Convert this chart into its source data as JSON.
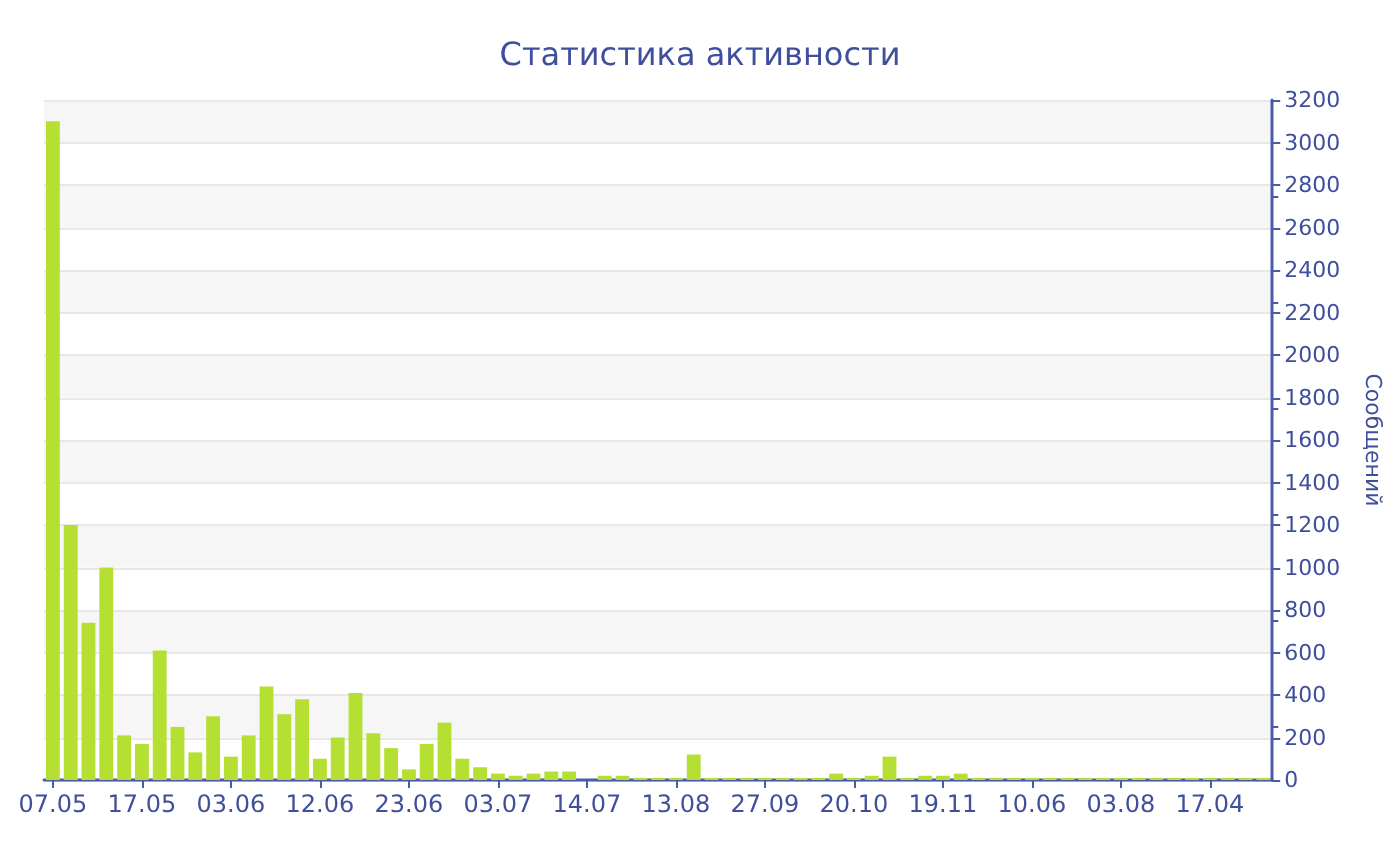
{
  "chart_data": {
    "type": "bar",
    "title": "Статистика активности",
    "ylabel": "Сообщений",
    "categories": [
      "07.05",
      null,
      null,
      null,
      null,
      "17.05",
      null,
      null,
      null,
      null,
      "03.06",
      null,
      null,
      null,
      null,
      "12.06",
      null,
      null,
      null,
      null,
      "23.06",
      null,
      null,
      null,
      null,
      "03.07",
      null,
      null,
      null,
      null,
      "14.07",
      null,
      null,
      null,
      null,
      "13.08",
      null,
      null,
      null,
      null,
      "27.09",
      null,
      null,
      null,
      null,
      "20.10",
      null,
      null,
      null,
      null,
      "19.11",
      null,
      null,
      null,
      null,
      "10.06",
      null,
      null,
      null,
      null,
      "03.08",
      null,
      null,
      null,
      null,
      "17.04",
      null,
      null,
      null
    ],
    "values": [
      3100,
      1200,
      740,
      1000,
      210,
      170,
      610,
      250,
      130,
      300,
      110,
      210,
      440,
      310,
      380,
      100,
      200,
      410,
      220,
      150,
      50,
      170,
      270,
      100,
      60,
      30,
      20,
      30,
      40,
      40,
      0,
      20,
      20,
      10,
      10,
      10,
      120,
      10,
      10,
      10,
      10,
      10,
      10,
      10,
      30,
      10,
      20,
      110,
      10,
      20,
      20,
      30,
      10,
      10,
      10,
      10,
      10,
      10,
      10,
      10,
      10,
      10,
      10,
      10,
      10,
      10,
      10,
      10,
      10
    ],
    "color": "#b5e033",
    "ylim": [
      0,
      3200
    ],
    "yticks": [
      0,
      200,
      400,
      600,
      800,
      1000,
      1200,
      1400,
      1600,
      1800,
      2000,
      2200,
      2400,
      2600,
      2800,
      3000,
      3200
    ],
    "grid": "y"
  }
}
